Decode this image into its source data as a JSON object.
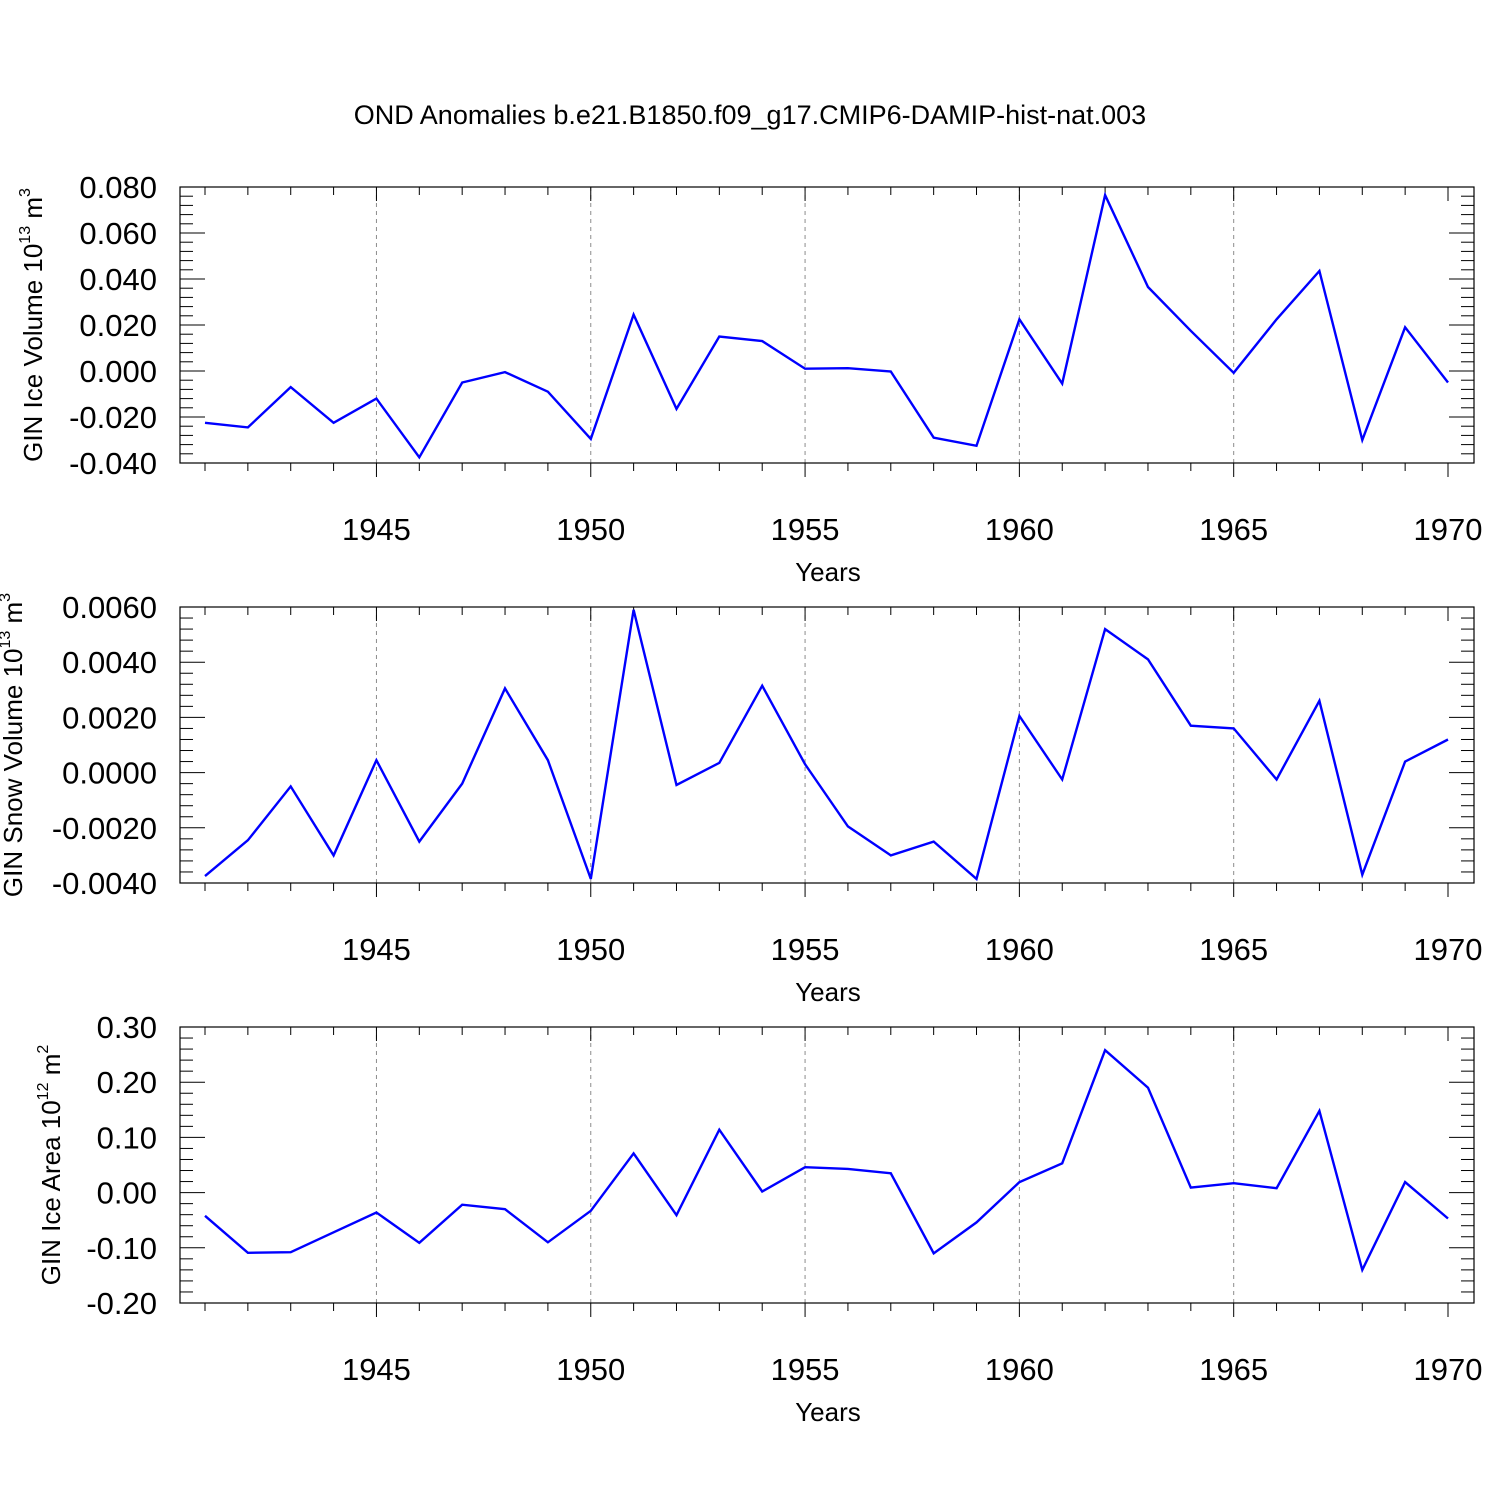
{
  "title": "OND Anomalies b.e21.B1850.f09_g17.CMIP6-DAMIP-hist-nat.003",
  "colors": {
    "line": "#0000ff",
    "axis": "#000000",
    "grid": "#8c8c8c"
  },
  "chart_data": [
    {
      "type": "line",
      "ylabel": {
        "text": "GIN Ice Volume 10",
        "sup": "13",
        "unit": " m",
        "unit_sup": "3"
      },
      "xlabel": "Years",
      "xlim": [
        1941,
        1970
      ],
      "ylim": [
        -0.04,
        0.08
      ],
      "xticks": [
        1945,
        1950,
        1955,
        1960,
        1965,
        1970
      ],
      "xtick_labels": [
        "1945",
        "1950",
        "1955",
        "1960",
        "1965",
        "1970"
      ],
      "yticks": [
        -0.04,
        -0.02,
        0.0,
        0.02,
        0.04,
        0.06,
        0.08
      ],
      "ytick_labels": [
        "-0.040",
        "-0.020",
        "0.000",
        "0.020",
        "0.040",
        "0.060",
        "0.080"
      ],
      "grid": "vertical-dashed",
      "x": [
        1941,
        1942,
        1943,
        1944,
        1945,
        1946,
        1947,
        1948,
        1949,
        1950,
        1951,
        1952,
        1953,
        1954,
        1955,
        1956,
        1957,
        1958,
        1959,
        1960,
        1961,
        1962,
        1963,
        1964,
        1965,
        1966,
        1967,
        1968,
        1969,
        1970
      ],
      "values": [
        -0.0225,
        -0.0245,
        -0.007,
        -0.0225,
        -0.012,
        -0.0375,
        -0.005,
        -0.0005,
        -0.009,
        -0.0295,
        0.0245,
        -0.0165,
        0.015,
        0.013,
        0.001,
        0.0012,
        -0.0002,
        -0.029,
        -0.0325,
        0.0225,
        -0.0055,
        0.0765,
        0.0365,
        0.0175,
        -0.0008,
        0.0225,
        0.0435,
        -0.03,
        0.019,
        -0.005
      ]
    },
    {
      "type": "line",
      "ylabel": {
        "text": "GIN Snow Volume 10",
        "sup": "13",
        "unit": " m",
        "unit_sup": "3"
      },
      "xlabel": "Years",
      "xlim": [
        1941,
        1970
      ],
      "ylim": [
        -0.004,
        0.006
      ],
      "xticks": [
        1945,
        1950,
        1955,
        1960,
        1965,
        1970
      ],
      "xtick_labels": [
        "1945",
        "1950",
        "1955",
        "1960",
        "1965",
        "1970"
      ],
      "yticks": [
        -0.004,
        -0.002,
        0.0,
        0.002,
        0.004,
        0.006
      ],
      "ytick_labels": [
        "-0.0040",
        "-0.0020",
        "0.0000",
        "0.0020",
        "0.0040",
        "0.0060"
      ],
      "grid": "vertical-dashed",
      "x": [
        1941,
        1942,
        1943,
        1944,
        1945,
        1946,
        1947,
        1948,
        1949,
        1950,
        1951,
        1952,
        1953,
        1954,
        1955,
        1956,
        1957,
        1958,
        1959,
        1960,
        1961,
        1962,
        1963,
        1964,
        1965,
        1966,
        1967,
        1968,
        1969,
        1970
      ],
      "values": [
        -0.00375,
        -0.00245,
        -0.0005,
        -0.003,
        0.00045,
        -0.0025,
        -0.0004,
        0.00305,
        0.00045,
        -0.00385,
        0.0059,
        -0.00045,
        0.00035,
        0.00315,
        0.0003,
        -0.00195,
        -0.003,
        -0.0025,
        -0.00385,
        0.00205,
        -0.00025,
        0.0052,
        0.0041,
        0.0017,
        0.0016,
        -0.00025,
        0.0026,
        -0.0037,
        0.0004,
        0.0012
      ]
    },
    {
      "type": "line",
      "ylabel": {
        "text": "GIN Ice Area 10",
        "sup": "12",
        "unit": " m",
        "unit_sup": "2"
      },
      "xlabel": "Years",
      "xlim": [
        1941,
        1970
      ],
      "ylim": [
        -0.2,
        0.3
      ],
      "xticks": [
        1945,
        1950,
        1955,
        1960,
        1965,
        1970
      ],
      "xtick_labels": [
        "1945",
        "1950",
        "1955",
        "1960",
        "1965",
        "1970"
      ],
      "yticks": [
        -0.2,
        -0.1,
        0.0,
        0.1,
        0.2,
        0.3
      ],
      "ytick_labels": [
        "-0.20",
        "-0.10",
        "0.00",
        "0.10",
        "0.20",
        "0.30"
      ],
      "grid": "vertical-dashed",
      "x": [
        1941,
        1942,
        1943,
        1944,
        1945,
        1946,
        1947,
        1948,
        1949,
        1950,
        1951,
        1952,
        1953,
        1954,
        1955,
        1956,
        1957,
        1958,
        1959,
        1960,
        1961,
        1962,
        1963,
        1964,
        1965,
        1966,
        1967,
        1968,
        1969,
        1970
      ],
      "values": [
        -0.042,
        -0.109,
        -0.108,
        -0.072,
        -0.036,
        -0.091,
        -0.022,
        -0.03,
        -0.09,
        -0.033,
        0.071,
        -0.041,
        0.114,
        0.002,
        0.046,
        0.043,
        0.035,
        -0.11,
        -0.054,
        0.019,
        0.053,
        0.258,
        0.19,
        0.009,
        0.017,
        0.008,
        0.148,
        -0.14,
        0.019,
        -0.047
      ]
    }
  ]
}
